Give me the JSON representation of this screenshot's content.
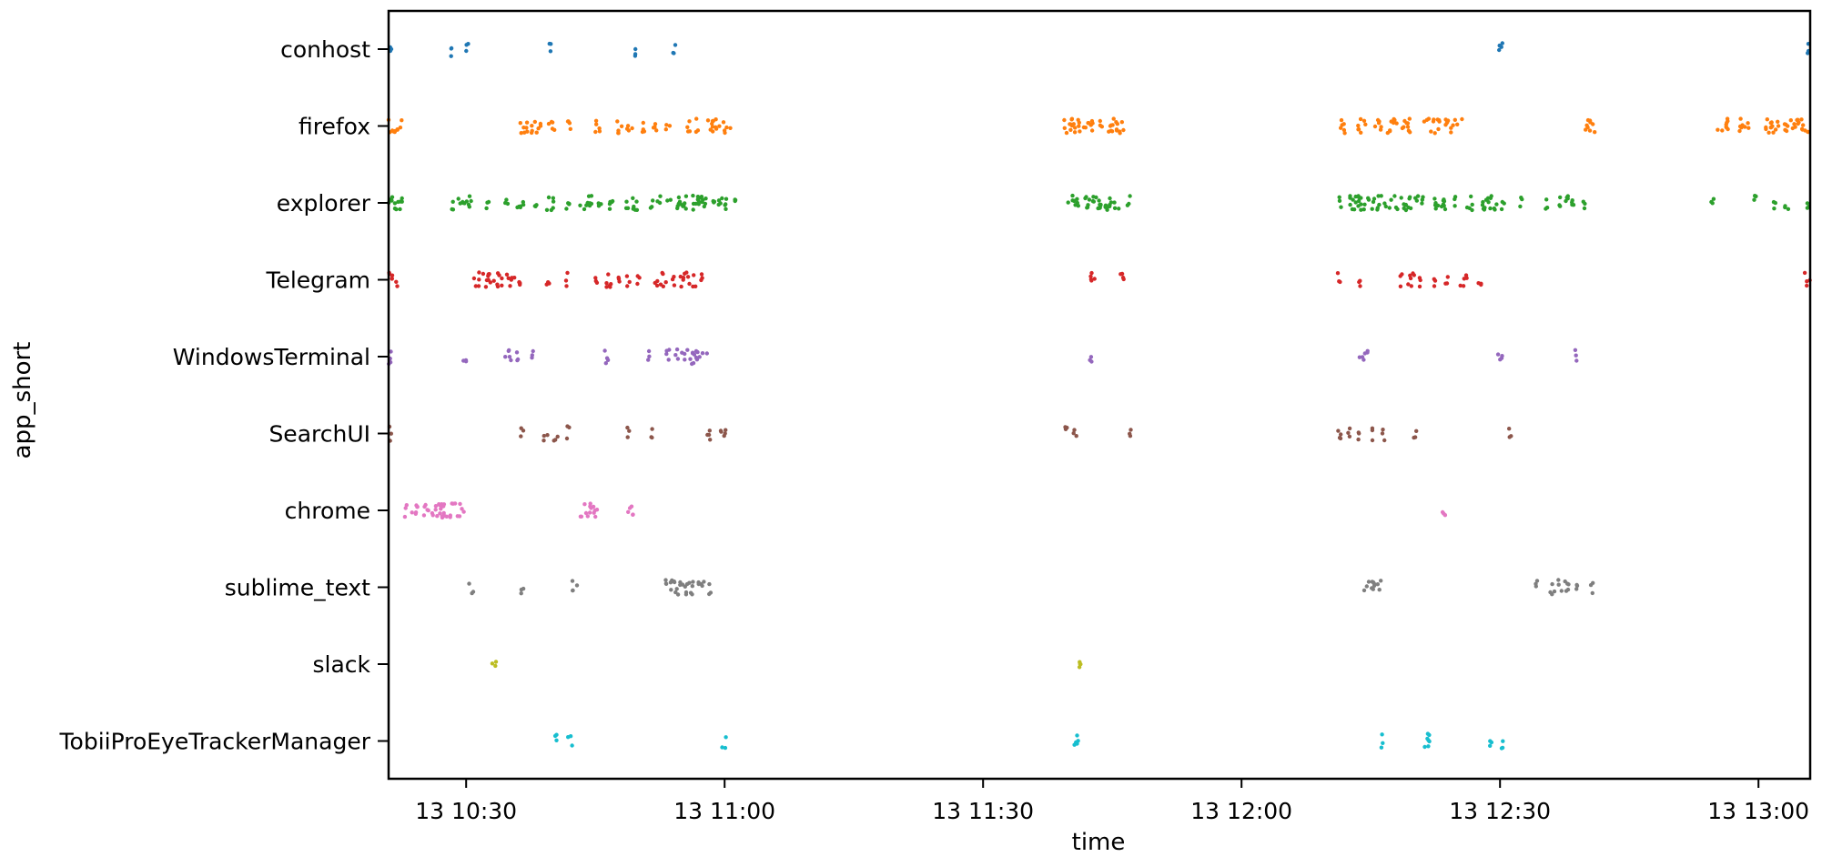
{
  "chart_data": {
    "type": "scatter",
    "title": "",
    "xlabel": "time",
    "ylabel": "app_short",
    "x_axis": {
      "scale": "time",
      "range": [
        "13 10:21",
        "13 13:06"
      ],
      "ticks": [
        "13 10:30",
        "13 11:00",
        "13 11:30",
        "13 12:00",
        "13 12:30",
        "13 13:00"
      ]
    },
    "y_axis": {
      "scale": "categorical",
      "categories": [
        "conhost",
        "firefox",
        "explorer",
        "Telegram",
        "WindowsTerminal",
        "SearchUI",
        "chrome",
        "sublime_text",
        "slack",
        "TobiiProEyeTrackerManager"
      ]
    },
    "grid": false,
    "legend": "none",
    "series": [
      {
        "category": "conhost",
        "color": "#1f77b4",
        "intervals": [
          [
            "10:21:00",
            "10:21:20"
          ],
          [
            "10:28:10",
            "10:28:30"
          ],
          [
            "10:29:50",
            "10:30:20"
          ],
          [
            "10:39:40",
            "10:39:55"
          ],
          [
            "10:49:20",
            "10:49:40"
          ],
          [
            "10:54:00",
            "10:54:20"
          ],
          [
            "12:29:40",
            "12:30:20"
          ],
          [
            "13:05:40",
            "13:06:00"
          ]
        ]
      },
      {
        "category": "firefox",
        "color": "#ff7f0e",
        "intervals": [
          [
            "10:21:00",
            "10:22:40"
          ],
          [
            "10:36:10",
            "10:38:40"
          ],
          [
            "10:39:30",
            "10:40:20"
          ],
          [
            "10:41:40",
            "10:42:20"
          ],
          [
            "10:44:50",
            "10:45:40"
          ],
          [
            "10:47:20",
            "10:48:10"
          ],
          [
            "10:48:40",
            "10:49:20"
          ],
          [
            "10:50:20",
            "10:51:00"
          ],
          [
            "10:51:30",
            "10:52:10"
          ],
          [
            "10:53:10",
            "10:53:40"
          ],
          [
            "10:55:20",
            "10:56:00"
          ],
          [
            "10:56:40",
            "10:57:10"
          ],
          [
            "10:58:00",
            "11:00:40"
          ],
          [
            "11:39:20",
            "11:44:00"
          ],
          [
            "11:44:30",
            "11:47:00"
          ],
          [
            "12:11:10",
            "12:12:10"
          ],
          [
            "12:13:20",
            "12:14:30"
          ],
          [
            "12:15:20",
            "12:16:20"
          ],
          [
            "12:16:50",
            "12:18:10"
          ],
          [
            "12:18:40",
            "12:20:10"
          ],
          [
            "12:21:10",
            "12:23:00"
          ],
          [
            "12:23:40",
            "12:25:40"
          ],
          [
            "12:39:40",
            "12:41:10"
          ],
          [
            "12:55:10",
            "12:56:40"
          ],
          [
            "12:57:40",
            "12:59:00"
          ],
          [
            "13:00:20",
            "13:05:50"
          ]
        ]
      },
      {
        "category": "explorer",
        "color": "#2ca02c",
        "intervals": [
          [
            "10:21:00",
            "10:23:00"
          ],
          [
            "10:28:10",
            "10:28:30"
          ],
          [
            "10:29:00",
            "10:30:40"
          ],
          [
            "10:32:20",
            "10:32:40"
          ],
          [
            "10:34:30",
            "10:34:50"
          ],
          [
            "10:35:40",
            "10:36:40"
          ],
          [
            "10:37:40",
            "10:38:10"
          ],
          [
            "10:39:10",
            "10:40:10"
          ],
          [
            "10:41:30",
            "10:42:10"
          ],
          [
            "10:43:10",
            "10:44:40"
          ],
          [
            "10:45:20",
            "10:45:40"
          ],
          [
            "10:46:20",
            "10:47:10"
          ],
          [
            "10:48:30",
            "10:48:50"
          ],
          [
            "10:49:20",
            "10:50:20"
          ],
          [
            "10:51:20",
            "10:51:50"
          ],
          [
            "10:52:10",
            "10:52:40"
          ],
          [
            "10:53:10",
            "10:57:50"
          ],
          [
            "10:58:30",
            "11:00:20"
          ],
          [
            "11:01:10",
            "11:01:30"
          ],
          [
            "11:39:20",
            "11:43:40"
          ],
          [
            "11:44:10",
            "11:46:10"
          ],
          [
            "11:46:40",
            "11:47:10"
          ],
          [
            "12:11:20",
            "12:11:40"
          ],
          [
            "12:12:10",
            "12:19:40"
          ],
          [
            "12:20:10",
            "12:21:10"
          ],
          [
            "12:22:20",
            "12:23:40"
          ],
          [
            "12:23:20",
            "12:24:00"
          ],
          [
            "12:24:40",
            "12:25:00"
          ],
          [
            "12:26:00",
            "12:26:50"
          ],
          [
            "12:27:20",
            "12:29:40"
          ],
          [
            "12:30:10",
            "12:30:30"
          ],
          [
            "12:32:20",
            "12:32:40"
          ],
          [
            "12:35:10",
            "12:35:30"
          ],
          [
            "12:36:40",
            "12:37:00"
          ],
          [
            "12:37:30",
            "12:38:50"
          ],
          [
            "12:39:40",
            "12:40:00"
          ],
          [
            "12:54:30",
            "12:54:50"
          ],
          [
            "12:59:30",
            "12:59:50"
          ],
          [
            "13:01:40",
            "13:02:00"
          ],
          [
            "13:03:00",
            "13:03:30"
          ],
          [
            "13:05:40",
            "13:06:00"
          ]
        ]
      },
      {
        "category": "Telegram",
        "color": "#d62728",
        "intervals": [
          [
            "10:21:00",
            "10:22:10"
          ],
          [
            "10:30:40",
            "10:31:30"
          ],
          [
            "10:31:50",
            "10:34:20"
          ],
          [
            "10:34:40",
            "10:35:40"
          ],
          [
            "10:35:50",
            "10:36:30"
          ],
          [
            "10:39:20",
            "10:39:40"
          ],
          [
            "10:41:30",
            "10:41:50"
          ],
          [
            "10:44:50",
            "10:45:20"
          ],
          [
            "10:46:10",
            "10:47:10"
          ],
          [
            "10:47:40",
            "10:48:10"
          ],
          [
            "10:48:40",
            "10:49:00"
          ],
          [
            "10:49:50",
            "10:50:10"
          ],
          [
            "10:51:50",
            "10:52:20"
          ],
          [
            "10:52:30",
            "10:53:20"
          ],
          [
            "10:53:40",
            "10:54:10"
          ],
          [
            "10:54:50",
            "10:56:40"
          ],
          [
            "10:57:10",
            "10:57:30"
          ],
          [
            "11:42:20",
            "11:43:10"
          ],
          [
            "11:45:40",
            "11:46:20"
          ],
          [
            "12:11:10",
            "12:11:40"
          ],
          [
            "12:13:30",
            "12:13:50"
          ],
          [
            "12:18:20",
            "12:18:40"
          ],
          [
            "12:19:10",
            "12:20:10"
          ],
          [
            "12:20:30",
            "12:20:50"
          ],
          [
            "12:22:10",
            "12:22:30"
          ],
          [
            "12:23:40",
            "12:24:00"
          ],
          [
            "12:25:20",
            "12:26:10"
          ],
          [
            "12:27:30",
            "12:27:50"
          ],
          [
            "13:05:20",
            "13:06:00"
          ]
        ]
      },
      {
        "category": "WindowsTerminal",
        "color": "#9467bd",
        "intervals": [
          [
            "10:21:00",
            "10:21:40"
          ],
          [
            "10:29:40",
            "10:30:00"
          ],
          [
            "10:34:30",
            "10:35:20"
          ],
          [
            "10:35:50",
            "10:36:10"
          ],
          [
            "10:37:30",
            "10:38:00"
          ],
          [
            "10:45:50",
            "10:46:30"
          ],
          [
            "10:51:00",
            "10:51:20"
          ],
          [
            "10:53:00",
            "10:53:40"
          ],
          [
            "10:54:10",
            "10:54:40"
          ],
          [
            "10:55:00",
            "10:58:00"
          ],
          [
            "11:42:20",
            "11:42:40"
          ],
          [
            "12:13:40",
            "12:14:40"
          ],
          [
            "12:29:40",
            "12:30:20"
          ],
          [
            "12:38:40",
            "12:39:00"
          ]
        ]
      },
      {
        "category": "SearchUI",
        "color": "#8c564b",
        "intervals": [
          [
            "10:21:00",
            "10:21:20"
          ],
          [
            "10:36:20",
            "10:36:40"
          ],
          [
            "10:39:00",
            "10:39:30"
          ],
          [
            "10:40:10",
            "10:40:40"
          ],
          [
            "10:41:40",
            "10:42:00"
          ],
          [
            "10:48:40",
            "10:49:00"
          ],
          [
            "10:51:20",
            "10:51:40"
          ],
          [
            "10:58:00",
            "10:58:40"
          ],
          [
            "10:59:20",
            "11:00:10"
          ],
          [
            "11:39:20",
            "11:39:50"
          ],
          [
            "11:40:30",
            "11:40:50"
          ],
          [
            "11:47:00",
            "11:47:20"
          ],
          [
            "12:11:00",
            "12:11:40"
          ],
          [
            "12:12:20",
            "12:12:40"
          ],
          [
            "12:13:20",
            "12:13:40"
          ],
          [
            "12:15:10",
            "12:15:30"
          ],
          [
            "12:16:20",
            "12:16:50"
          ],
          [
            "12:20:00",
            "12:20:20"
          ],
          [
            "12:31:00",
            "12:31:20"
          ]
        ]
      },
      {
        "category": "chrome",
        "color": "#e377c2",
        "intervals": [
          [
            "10:22:50",
            "10:30:00"
          ],
          [
            "10:43:00",
            "10:45:20"
          ],
          [
            "10:48:40",
            "10:49:30"
          ],
          [
            "12:23:20",
            "12:23:40"
          ]
        ]
      },
      {
        "category": "sublime_text",
        "color": "#7f7f7f",
        "intervals": [
          [
            "10:30:20",
            "10:30:50"
          ],
          [
            "10:36:20",
            "10:36:40"
          ],
          [
            "10:42:20",
            "10:43:00"
          ],
          [
            "10:53:00",
            "10:57:40"
          ],
          [
            "10:58:00",
            "10:58:30"
          ],
          [
            "12:14:00",
            "12:15:30"
          ],
          [
            "12:15:40",
            "12:16:10"
          ],
          [
            "12:34:00",
            "12:34:20"
          ],
          [
            "12:35:40",
            "12:36:20"
          ],
          [
            "12:36:40",
            "12:38:00"
          ],
          [
            "12:38:50",
            "12:39:10"
          ],
          [
            "12:40:30",
            "12:40:50"
          ]
        ]
      },
      {
        "category": "slack",
        "color": "#bcbd22",
        "intervals": [
          [
            "10:33:00",
            "10:33:30"
          ],
          [
            "11:41:00",
            "11:41:40"
          ]
        ]
      },
      {
        "category": "TobiiProEyeTrackerManager",
        "color": "#17becf",
        "intervals": [
          [
            "10:40:00",
            "10:40:30"
          ],
          [
            "10:41:50",
            "10:42:20"
          ],
          [
            "10:59:40",
            "11:00:10"
          ],
          [
            "11:40:30",
            "11:41:20"
          ],
          [
            "12:16:10",
            "12:16:40"
          ],
          [
            "12:21:10",
            "12:22:20"
          ],
          [
            "12:28:50",
            "12:29:10"
          ],
          [
            "12:30:10",
            "12:30:40"
          ]
        ]
      }
    ]
  }
}
